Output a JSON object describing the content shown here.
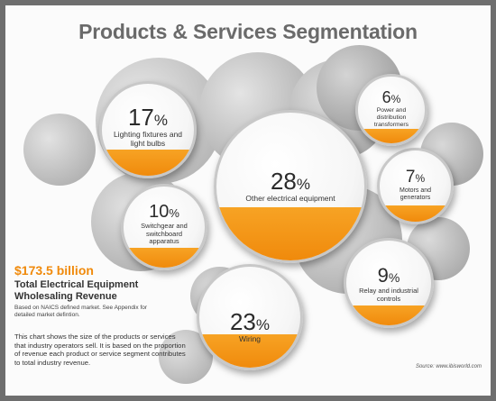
{
  "title": "Products & Services Segmentation",
  "chart_data": {
    "type": "bubble",
    "title": "Products & Services Segmentation",
    "slices": [
      {
        "label": "Other electrical equipment",
        "value": 28
      },
      {
        "label": "Wiring",
        "value": 23
      },
      {
        "label": "Lighting fixtures and light bulbs",
        "value": 17
      },
      {
        "label": "Switchgear and switchboard apparatus",
        "value": 10
      },
      {
        "label": "Relay and industrial controls",
        "value": 9
      },
      {
        "label": "Motors and generators",
        "value": 7
      },
      {
        "label": "Power and distribution transformers",
        "value": 6
      }
    ],
    "unit": "%"
  },
  "revenue": {
    "amount": "$173.5 billion",
    "title": "Total Electrical Equipment Wholesaling Revenue",
    "note": "Based on NAICS defined market. See Appendix for detailed market defintion."
  },
  "description": "This chart shows the size of the products or services that industry operators sell. It is based on the proportion of revenue each product or service segment contributes to total industry revenue.",
  "source": "Source: www.ibisworld.com",
  "colors": {
    "accent": "#f08a0c",
    "frame": "#6e6e6e",
    "title": "#6a6a6a"
  }
}
